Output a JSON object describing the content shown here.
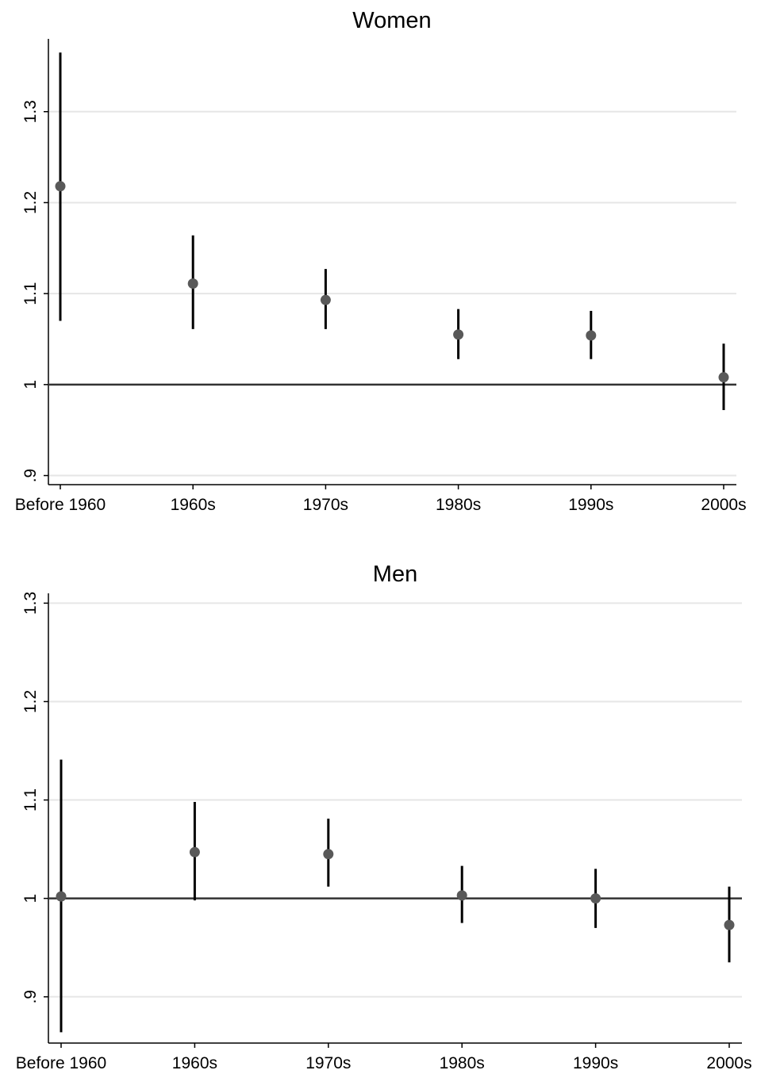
{
  "chart_data": [
    {
      "type": "scatter",
      "title": "Women",
      "categories": [
        "Before 1960",
        "1960s",
        "1970s",
        "1980s",
        "1990s",
        "2000s"
      ],
      "estimates": [
        1.218,
        1.111,
        1.093,
        1.055,
        1.054,
        1.008
      ],
      "ci_lower": [
        1.07,
        1.061,
        1.061,
        1.028,
        1.028,
        0.972
      ],
      "ci_upper": [
        1.365,
        1.164,
        1.127,
        1.083,
        1.081,
        1.045
      ],
      "yticks": [
        0.9,
        1,
        1.1,
        1.2,
        1.3
      ],
      "ytick_labels": [
        ".9",
        "1",
        "1.1",
        "1.2",
        "1.3"
      ],
      "ylim": [
        0.89,
        1.38
      ],
      "reference_line": 1,
      "grid": true,
      "colors": {
        "marker": "#595959",
        "ci": "#000000",
        "grid": "#e6e6e6",
        "reference": "#333333"
      }
    },
    {
      "type": "scatter",
      "title": "Men",
      "categories": [
        "Before 1960",
        "1960s",
        "1970s",
        "1980s",
        "1990s",
        "2000s"
      ],
      "estimates": [
        1.002,
        1.047,
        1.045,
        1.003,
        1.0,
        0.973
      ],
      "ci_lower": [
        0.864,
        0.998,
        1.012,
        0.975,
        0.97,
        0.935
      ],
      "ci_upper": [
        1.141,
        1.098,
        1.081,
        1.033,
        1.03,
        1.012
      ],
      "yticks": [
        0.9,
        1,
        1.1,
        1.2,
        1.3
      ],
      "ytick_labels": [
        ".9",
        "1",
        "1.1",
        "1.2",
        "1.3"
      ],
      "ylim": [
        0.853,
        1.31
      ],
      "reference_line": 1,
      "grid": true,
      "colors": {
        "marker": "#595959",
        "ci": "#000000",
        "grid": "#e6e6e6",
        "reference": "#333333"
      }
    }
  ]
}
